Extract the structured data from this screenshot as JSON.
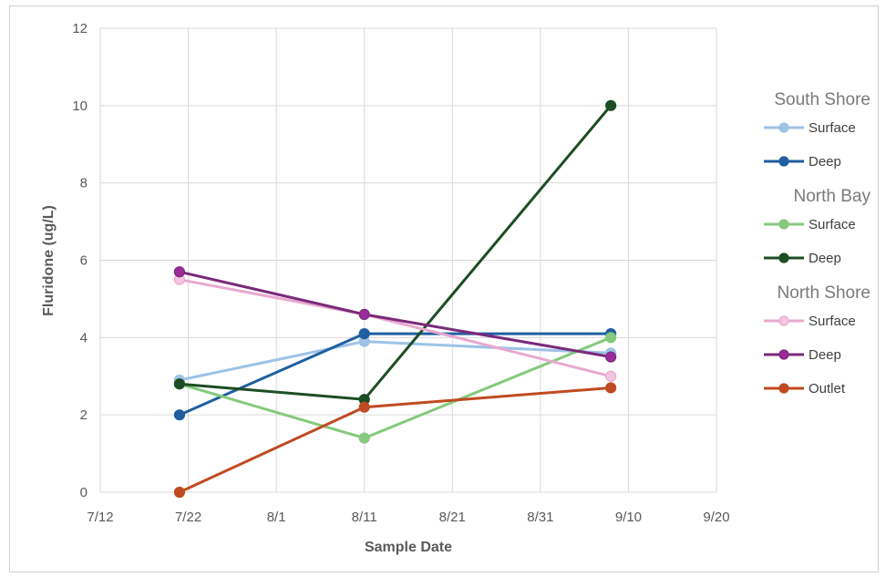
{
  "chart_data": {
    "type": "line",
    "title": "",
    "xlabel": "Sample Date",
    "ylabel": "Fluridone (ug/L)",
    "x_ticks": [
      "7/12",
      "7/22",
      "8/1",
      "8/11",
      "8/21",
      "8/31",
      "9/10",
      "9/20"
    ],
    "ylim": [
      0,
      12
    ],
    "y_ticks": [
      0,
      2,
      4,
      6,
      8,
      10,
      12
    ],
    "grid": true,
    "legend_position": "right",
    "legend_groups": [
      {
        "name": "South Shore",
        "series": [
          0,
          1
        ]
      },
      {
        "name": "North Bay",
        "series": [
          2,
          3
        ]
      },
      {
        "name": "North Shore",
        "series": [
          4,
          5
        ]
      },
      {
        "name": "",
        "series": [
          6
        ]
      }
    ],
    "series": [
      {
        "name": "Surface",
        "color": "#9dc3e6",
        "marker_fill": "#9dc3e6",
        "points": [
          {
            "x": "7/21",
            "y": 2.9
          },
          {
            "x": "8/11",
            "y": 3.9
          },
          {
            "x": "9/8",
            "y": 3.6
          }
        ]
      },
      {
        "name": "Deep",
        "color": "#1f5fa0",
        "marker_fill": "#1f5fa0",
        "points": [
          {
            "x": "7/21",
            "y": 2.0
          },
          {
            "x": "8/11",
            "y": 4.1
          },
          {
            "x": "9/8",
            "y": 4.1
          }
        ]
      },
      {
        "name": "Surface",
        "color": "#85c97c",
        "marker_fill": "#85c97c",
        "points": [
          {
            "x": "7/21",
            "y": 2.8
          },
          {
            "x": "8/11",
            "y": 1.4
          },
          {
            "x": "9/8",
            "y": 4.0
          }
        ]
      },
      {
        "name": "Deep",
        "color": "#1d4d25",
        "marker_fill": "#1d4d25",
        "points": [
          {
            "x": "7/21",
            "y": 2.8
          },
          {
            "x": "8/11",
            "y": 2.4
          },
          {
            "x": "9/8",
            "y": 10.0
          }
        ]
      },
      {
        "name": "Surface",
        "color": "#e8a9cf",
        "marker_fill": "#f2c6e0",
        "points": [
          {
            "x": "7/21",
            "y": 5.5
          },
          {
            "x": "8/11",
            "y": 4.6
          },
          {
            "x": "9/8",
            "y": 3.0
          }
        ]
      },
      {
        "name": "Deep",
        "color": "#7a2a7a",
        "marker_fill": "#9b2b9b",
        "points": [
          {
            "x": "7/21",
            "y": 5.7
          },
          {
            "x": "8/11",
            "y": 4.6
          },
          {
            "x": "9/8",
            "y": 3.5
          }
        ]
      },
      {
        "name": "Outlet",
        "color": "#c04a22",
        "marker_fill": "#c04a22",
        "points": [
          {
            "x": "7/21",
            "y": 0.0
          },
          {
            "x": "8/11",
            "y": 2.2
          },
          {
            "x": "9/8",
            "y": 2.7
          }
        ]
      }
    ]
  }
}
